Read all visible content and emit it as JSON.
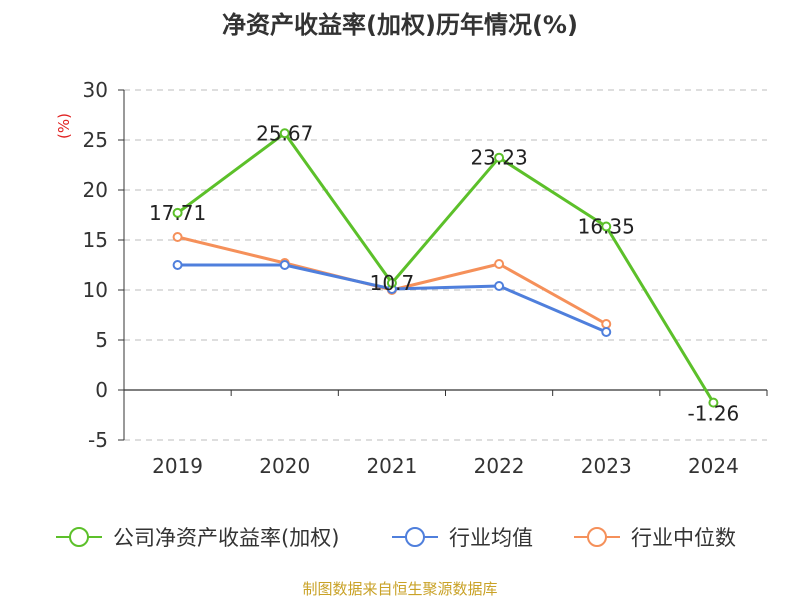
{
  "chart_data": {
    "type": "line",
    "title": "净资产收益率(加权)历年情况(%)",
    "unit_label": "(%)",
    "categories": [
      "2019",
      "2020",
      "2021",
      "2022",
      "2023",
      "2024"
    ],
    "ylim": [
      -5,
      30
    ],
    "yticks": [
      30,
      25,
      20,
      15,
      10,
      5,
      0,
      -5
    ],
    "grid": true,
    "legend_position": "bottom",
    "series": [
      {
        "name": "公司净资产收益率(加权)",
        "color": "#5cc02a",
        "values": [
          17.71,
          25.67,
          10.7,
          23.23,
          16.35,
          -1.26
        ],
        "labels": [
          "17.71",
          "25.67",
          "10.7",
          "23.23",
          "16.35",
          "-1.26"
        ]
      },
      {
        "name": "行业均值",
        "color": "#4f7fdc",
        "values": [
          12.5,
          12.5,
          10.1,
          10.4,
          5.8,
          null
        ]
      },
      {
        "name": "行业中位数",
        "color": "#f5905a",
        "values": [
          15.3,
          12.7,
          10.0,
          12.6,
          6.6,
          null
        ]
      }
    ],
    "source": "制图数据来自恒生聚源数据库"
  }
}
